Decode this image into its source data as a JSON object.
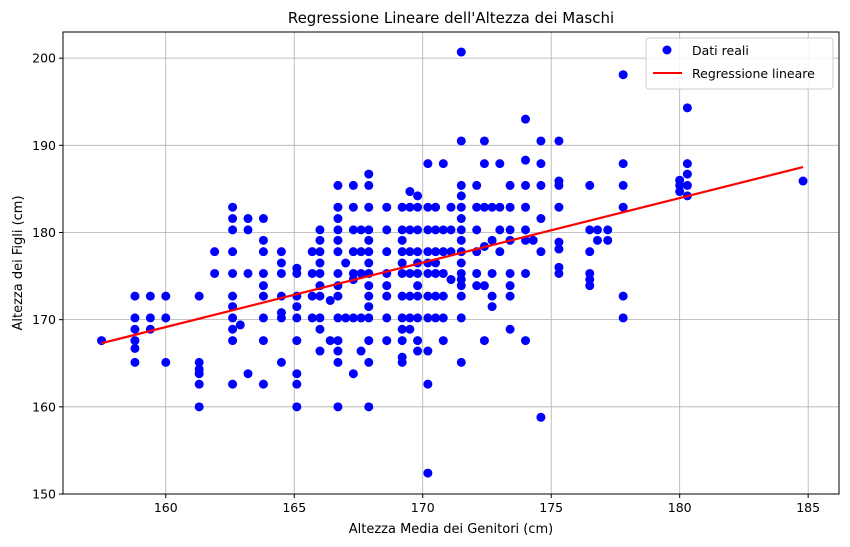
{
  "chart_data": {
    "type": "scatter",
    "title": "Regressione Lineare dell'Altezza dei Maschi",
    "xlabel": "Altezza Media dei Genitori (cm)",
    "ylabel": "Altezza dei Figli (cm)",
    "xlim": [
      156,
      186.2
    ],
    "ylim": [
      150,
      203
    ],
    "xticks": [
      160,
      165,
      170,
      175,
      180,
      185
    ],
    "yticks": [
      150,
      160,
      170,
      180,
      190,
      200
    ],
    "grid": true,
    "legend_position": "top-right",
    "series": [
      {
        "name": "Dati reali",
        "kind": "scatter",
        "color": "#0000ff",
        "points": [
          [
            157.5,
            167.6
          ],
          [
            158.8,
            172.7
          ],
          [
            158.8,
            170.2
          ],
          [
            158.8,
            168.9
          ],
          [
            158.8,
            167.6
          ],
          [
            158.8,
            166.7
          ],
          [
            158.8,
            165.1
          ],
          [
            159.4,
            172.7
          ],
          [
            159.4,
            170.2
          ],
          [
            159.4,
            168.9
          ],
          [
            160.0,
            172.7
          ],
          [
            160.0,
            170.2
          ],
          [
            160.0,
            165.1
          ],
          [
            161.3,
            172.7
          ],
          [
            161.3,
            165.1
          ],
          [
            161.3,
            164.3
          ],
          [
            161.3,
            163.8
          ],
          [
            161.3,
            162.6
          ],
          [
            161.3,
            160.0
          ],
          [
            161.9,
            177.8
          ],
          [
            161.9,
            175.3
          ],
          [
            162.6,
            182.9
          ],
          [
            162.6,
            181.6
          ],
          [
            162.6,
            180.3
          ],
          [
            162.6,
            177.8
          ],
          [
            162.6,
            175.3
          ],
          [
            162.6,
            172.7
          ],
          [
            162.6,
            171.5
          ],
          [
            162.6,
            170.2
          ],
          [
            162.6,
            168.9
          ],
          [
            162.6,
            167.6
          ],
          [
            162.6,
            162.6
          ],
          [
            162.9,
            169.4
          ],
          [
            163.2,
            181.6
          ],
          [
            163.2,
            180.3
          ],
          [
            163.2,
            175.3
          ],
          [
            163.2,
            163.8
          ],
          [
            163.8,
            181.6
          ],
          [
            163.8,
            179.1
          ],
          [
            163.8,
            177.8
          ],
          [
            163.8,
            175.3
          ],
          [
            163.8,
            173.9
          ],
          [
            163.8,
            172.7
          ],
          [
            163.8,
            170.2
          ],
          [
            163.8,
            167.6
          ],
          [
            163.8,
            162.6
          ],
          [
            164.5,
            177.8
          ],
          [
            164.5,
            176.5
          ],
          [
            164.5,
            175.3
          ],
          [
            164.5,
            172.7
          ],
          [
            164.5,
            170.8
          ],
          [
            164.5,
            170.2
          ],
          [
            164.5,
            165.1
          ],
          [
            165.1,
            175.9
          ],
          [
            165.1,
            175.3
          ],
          [
            165.1,
            172.7
          ],
          [
            165.1,
            171.5
          ],
          [
            165.1,
            170.2
          ],
          [
            165.1,
            167.6
          ],
          [
            165.1,
            163.8
          ],
          [
            165.1,
            162.6
          ],
          [
            165.1,
            160.0
          ],
          [
            165.7,
            177.8
          ],
          [
            165.7,
            175.3
          ],
          [
            165.7,
            172.7
          ],
          [
            165.7,
            170.2
          ],
          [
            166.0,
            180.3
          ],
          [
            166.0,
            179.1
          ],
          [
            166.0,
            177.8
          ],
          [
            166.0,
            176.5
          ],
          [
            166.0,
            175.3
          ],
          [
            166.0,
            173.9
          ],
          [
            166.0,
            172.7
          ],
          [
            166.0,
            170.2
          ],
          [
            166.0,
            168.9
          ],
          [
            166.0,
            166.4
          ],
          [
            166.4,
            172.2
          ],
          [
            166.4,
            167.6
          ],
          [
            166.7,
            185.4
          ],
          [
            166.7,
            182.9
          ],
          [
            166.7,
            181.6
          ],
          [
            166.7,
            180.3
          ],
          [
            166.7,
            179.1
          ],
          [
            166.7,
            177.8
          ],
          [
            166.7,
            175.3
          ],
          [
            166.7,
            173.9
          ],
          [
            166.7,
            172.7
          ],
          [
            166.7,
            170.2
          ],
          [
            166.7,
            167.6
          ],
          [
            166.7,
            166.4
          ],
          [
            166.7,
            165.1
          ],
          [
            166.7,
            160.0
          ],
          [
            167.0,
            176.5
          ],
          [
            167.0,
            170.2
          ],
          [
            167.3,
            185.4
          ],
          [
            167.3,
            182.9
          ],
          [
            167.3,
            180.3
          ],
          [
            167.3,
            177.8
          ],
          [
            167.3,
            175.3
          ],
          [
            167.3,
            174.6
          ],
          [
            167.3,
            170.2
          ],
          [
            167.3,
            163.8
          ],
          [
            167.6,
            180.3
          ],
          [
            167.6,
            177.8
          ],
          [
            167.6,
            175.3
          ],
          [
            167.6,
            170.2
          ],
          [
            167.6,
            166.4
          ],
          [
            167.9,
            186.7
          ],
          [
            167.9,
            185.4
          ],
          [
            167.9,
            182.9
          ],
          [
            167.9,
            180.3
          ],
          [
            167.9,
            179.1
          ],
          [
            167.9,
            177.8
          ],
          [
            167.9,
            176.5
          ],
          [
            167.9,
            175.3
          ],
          [
            167.9,
            173.9
          ],
          [
            167.9,
            172.7
          ],
          [
            167.9,
            171.5
          ],
          [
            167.9,
            170.2
          ],
          [
            167.9,
            167.6
          ],
          [
            167.9,
            165.1
          ],
          [
            167.9,
            160.0
          ],
          [
            168.6,
            182.9
          ],
          [
            168.6,
            180.3
          ],
          [
            168.6,
            177.8
          ],
          [
            168.6,
            175.3
          ],
          [
            168.6,
            173.9
          ],
          [
            168.6,
            172.7
          ],
          [
            168.6,
            170.2
          ],
          [
            168.6,
            167.6
          ],
          [
            169.2,
            182.9
          ],
          [
            169.2,
            180.3
          ],
          [
            169.2,
            179.1
          ],
          [
            169.2,
            177.8
          ],
          [
            169.2,
            176.5
          ],
          [
            169.2,
            175.3
          ],
          [
            169.2,
            172.7
          ],
          [
            169.2,
            170.2
          ],
          [
            169.2,
            168.9
          ],
          [
            169.2,
            167.6
          ],
          [
            169.2,
            165.7
          ],
          [
            169.2,
            165.1
          ],
          [
            169.5,
            184.7
          ],
          [
            169.5,
            182.9
          ],
          [
            169.5,
            180.3
          ],
          [
            169.5,
            177.8
          ],
          [
            169.5,
            175.3
          ],
          [
            169.5,
            172.7
          ],
          [
            169.5,
            170.2
          ],
          [
            169.5,
            168.9
          ],
          [
            169.8,
            184.2
          ],
          [
            169.8,
            182.9
          ],
          [
            169.8,
            180.3
          ],
          [
            169.8,
            177.8
          ],
          [
            169.8,
            176.5
          ],
          [
            169.8,
            175.3
          ],
          [
            169.8,
            173.9
          ],
          [
            169.8,
            172.7
          ],
          [
            169.8,
            170.2
          ],
          [
            169.8,
            167.6
          ],
          [
            169.8,
            166.4
          ],
          [
            170.2,
            187.9
          ],
          [
            170.2,
            182.9
          ],
          [
            170.2,
            180.3
          ],
          [
            170.2,
            177.8
          ],
          [
            170.2,
            176.5
          ],
          [
            170.2,
            175.3
          ],
          [
            170.2,
            172.7
          ],
          [
            170.2,
            170.2
          ],
          [
            170.2,
            166.4
          ],
          [
            170.2,
            162.6
          ],
          [
            170.2,
            152.4
          ],
          [
            170.5,
            182.9
          ],
          [
            170.5,
            180.3
          ],
          [
            170.5,
            177.8
          ],
          [
            170.5,
            176.5
          ],
          [
            170.5,
            175.3
          ],
          [
            170.5,
            172.7
          ],
          [
            170.5,
            170.2
          ],
          [
            170.8,
            187.9
          ],
          [
            170.8,
            180.3
          ],
          [
            170.8,
            177.8
          ],
          [
            170.8,
            175.3
          ],
          [
            170.8,
            172.7
          ],
          [
            170.8,
            170.2
          ],
          [
            170.8,
            167.6
          ],
          [
            171.1,
            182.9
          ],
          [
            171.1,
            180.3
          ],
          [
            171.1,
            177.8
          ],
          [
            171.1,
            174.6
          ],
          [
            171.5,
            200.7
          ],
          [
            171.5,
            190.5
          ],
          [
            171.5,
            185.4
          ],
          [
            171.5,
            184.2
          ],
          [
            171.5,
            182.9
          ],
          [
            171.5,
            181.6
          ],
          [
            171.5,
            180.3
          ],
          [
            171.5,
            179.1
          ],
          [
            171.5,
            177.8
          ],
          [
            171.5,
            176.5
          ],
          [
            171.5,
            175.3
          ],
          [
            171.5,
            174.6
          ],
          [
            171.5,
            173.9
          ],
          [
            171.5,
            172.7
          ],
          [
            171.5,
            170.2
          ],
          [
            171.5,
            165.1
          ],
          [
            172.1,
            185.4
          ],
          [
            172.1,
            182.9
          ],
          [
            172.1,
            180.3
          ],
          [
            172.1,
            177.8
          ],
          [
            172.1,
            175.3
          ],
          [
            172.1,
            173.9
          ],
          [
            172.4,
            190.5
          ],
          [
            172.4,
            187.9
          ],
          [
            172.4,
            182.9
          ],
          [
            172.4,
            178.4
          ],
          [
            172.4,
            173.9
          ],
          [
            172.4,
            167.6
          ],
          [
            172.7,
            182.9
          ],
          [
            172.7,
            179.1
          ],
          [
            172.7,
            175.3
          ],
          [
            172.7,
            172.7
          ],
          [
            172.7,
            171.5
          ],
          [
            173.0,
            187.9
          ],
          [
            173.0,
            182.9
          ],
          [
            173.0,
            180.3
          ],
          [
            173.0,
            177.8
          ],
          [
            173.4,
            185.4
          ],
          [
            173.4,
            182.9
          ],
          [
            173.4,
            180.3
          ],
          [
            173.4,
            179.1
          ],
          [
            173.4,
            175.3
          ],
          [
            173.4,
            173.9
          ],
          [
            173.4,
            172.7
          ],
          [
            173.4,
            168.9
          ],
          [
            174.0,
            193.0
          ],
          [
            174.0,
            188.3
          ],
          [
            174.0,
            185.4
          ],
          [
            174.0,
            182.9
          ],
          [
            174.0,
            180.3
          ],
          [
            174.0,
            179.1
          ],
          [
            174.0,
            175.3
          ],
          [
            174.0,
            167.6
          ],
          [
            174.3,
            179.1
          ],
          [
            174.6,
            190.5
          ],
          [
            174.6,
            187.9
          ],
          [
            174.6,
            185.4
          ],
          [
            174.6,
            181.6
          ],
          [
            174.6,
            177.8
          ],
          [
            174.6,
            158.8
          ],
          [
            175.3,
            190.5
          ],
          [
            175.3,
            185.9
          ],
          [
            175.3,
            185.4
          ],
          [
            175.3,
            182.9
          ],
          [
            175.3,
            178.9
          ],
          [
            175.3,
            178.1
          ],
          [
            175.3,
            176.0
          ],
          [
            175.3,
            175.3
          ],
          [
            176.5,
            185.4
          ],
          [
            176.5,
            180.3
          ],
          [
            176.5,
            177.8
          ],
          [
            176.5,
            175.3
          ],
          [
            176.5,
            174.6
          ],
          [
            176.5,
            173.9
          ],
          [
            176.8,
            180.3
          ],
          [
            176.8,
            179.1
          ],
          [
            177.2,
            180.3
          ],
          [
            177.2,
            179.1
          ],
          [
            177.8,
            198.1
          ],
          [
            177.8,
            187.9
          ],
          [
            177.8,
            185.4
          ],
          [
            177.8,
            182.9
          ],
          [
            177.8,
            172.7
          ],
          [
            177.8,
            170.2
          ],
          [
            180.0,
            186.0
          ],
          [
            180.0,
            185.4
          ],
          [
            180.0,
            184.7
          ],
          [
            180.3,
            194.3
          ],
          [
            180.3,
            187.9
          ],
          [
            180.3,
            186.7
          ],
          [
            180.3,
            185.4
          ],
          [
            180.3,
            184.2
          ],
          [
            184.8,
            185.9
          ]
        ]
      },
      {
        "name": "Regressione lineare",
        "kind": "line",
        "color": "#ff0000",
        "points": [
          [
            157.5,
            167.3
          ],
          [
            184.8,
            187.5
          ]
        ]
      }
    ]
  }
}
